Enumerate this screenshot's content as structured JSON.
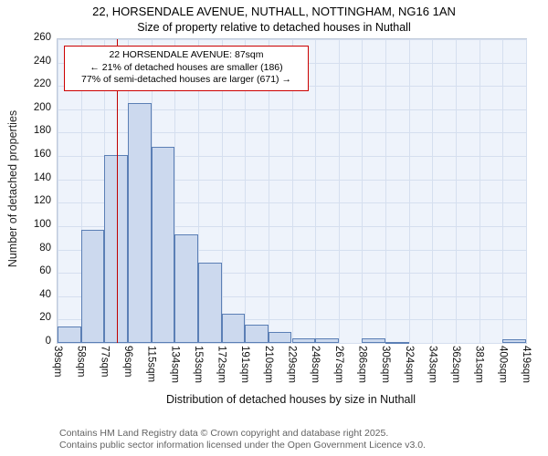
{
  "header": {
    "title": "22, HORSENDALE AVENUE, NUTHALL, NOTTINGHAM, NG16 1AN",
    "subtitle": "Size of property relative to detached houses in Nuthall"
  },
  "annotation": {
    "line1": "22 HORSENDALE AVENUE: 87sqm",
    "line2": "← 21% of detached houses are smaller (186)",
    "line3": "77% of semi-detached houses are larger (671) →"
  },
  "footer": {
    "line1": "Contains HM Land Registry data © Crown copyright and database right 2025.",
    "line2": "Contains public sector information licensed under the Open Government Licence v3.0."
  },
  "chart_data": {
    "type": "bar",
    "title": "22, HORSENDALE AVENUE, NUTHALL, NOTTINGHAM, NG16 1AN",
    "subtitle": "Size of property relative to detached houses in Nuthall",
    "xlabel": "Distribution of detached houses by size in Nuthall",
    "ylabel": "Number of detached properties",
    "bin_edges": [
      39,
      58,
      77,
      96,
      115,
      134,
      153,
      172,
      191,
      210,
      229,
      248,
      267,
      286,
      305,
      324,
      343,
      362,
      381,
      400,
      419
    ],
    "bin_labels": [
      "39sqm",
      "58sqm",
      "77sqm",
      "96sqm",
      "115sqm",
      "134sqm",
      "153sqm",
      "172sqm",
      "191sqm",
      "210sqm",
      "229sqm",
      "248sqm",
      "267sqm",
      "286sqm",
      "305sqm",
      "324sqm",
      "343sqm",
      "362sqm",
      "381sqm",
      "400sqm",
      "419sqm"
    ],
    "values": [
      14,
      97,
      161,
      205,
      168,
      93,
      69,
      25,
      16,
      9,
      4,
      4,
      0,
      4,
      1,
      0,
      0,
      0,
      0,
      3
    ],
    "ylim": [
      0,
      260
    ],
    "ytick_step": 20,
    "marker_value": 87,
    "grid": true,
    "legend": "none",
    "colors": {
      "bar_fill": "#ccd9ee",
      "bar_border": "#5b7fb5",
      "marker": "#c00000",
      "grid": "#d5dfef",
      "plot_bg": "#eef3fb",
      "annotation_border": "#cc0000"
    }
  }
}
